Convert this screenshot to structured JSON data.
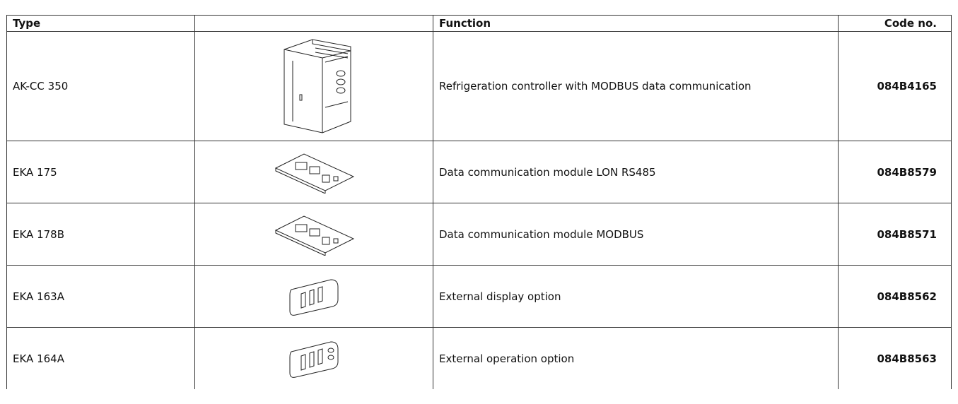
{
  "table": {
    "header": {
      "type": "Type",
      "function": "Function",
      "code": "Code no."
    },
    "rows": [
      {
        "type": "AK-CC 350",
        "function": "Refrigeration controller with MODBUS data communication",
        "code": "084B4165"
      },
      {
        "type": "EKA 175",
        "function": "Data communication module LON RS485",
        "code": "084B8579"
      },
      {
        "type": "EKA 178B",
        "function": "Data communication module MODBUS",
        "code": "084B8571"
      },
      {
        "type": "EKA 163A",
        "function": "External display option",
        "code": "084B8562"
      },
      {
        "type": "EKA 164A",
        "function": "External operation option",
        "code": "084B8563"
      }
    ]
  }
}
